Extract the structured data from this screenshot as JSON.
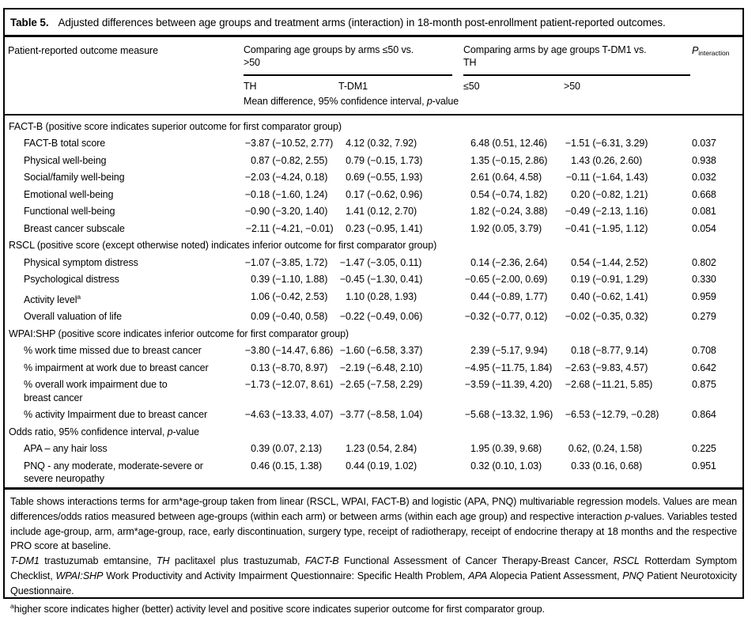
{
  "title": {
    "label": "Table 5.",
    "text": "Adjusted differences between age groups and treatment arms (interaction) in 18-month post-enrollment patient-reported outcomes."
  },
  "header": {
    "measure": "Patient-reported outcome measure",
    "group1_line1": "Comparing age groups by arms ≤50 vs.",
    "group1_line2": ">50",
    "group2_line1": "Comparing arms by age groups T-DM1 vs.",
    "group2_line2": "TH",
    "sub_th": "TH",
    "sub_tdm1": "T-DM1",
    "sub_le50": "≤50",
    "sub_gt50": ">50",
    "p_main": "P",
    "p_sub": "interaction",
    "stat_note": [
      [
        "",
        "Mean difference, 95% confidence interval, "
      ],
      [
        "i",
        "p"
      ],
      [
        "",
        "-value"
      ]
    ]
  },
  "sections": [
    {
      "header": [
        [
          "",
          "FACT-B (positive score indicates superior outcome for first comparator group)"
        ]
      ],
      "rows": [
        {
          "label": "FACT-B total score",
          "cells": [
            "−3.87 (−10.52, 2.77)",
            "4.12 (0.32, 7.92)",
            "6.48 (0.51, 12.46)",
            "−1.51 (−6.31, 3.29)"
          ],
          "p": "0.037"
        },
        {
          "label": "Physical well-being",
          "cells": [
            "0.87 (−0.82, 2.55)",
            "0.79 (−0.15, 1.73)",
            "1.35 (−0.15, 2.86)",
            "1.43 (0.26, 2.60)"
          ],
          "p": "0.938"
        },
        {
          "label": "Social/family well-being",
          "cells": [
            "−2.03 (−4.24, 0.18)",
            "0.69 (−0.55, 1.93)",
            "2.61 (0.64, 4.58)",
            "−0.11 (−1.64, 1.43)"
          ],
          "p": "0.032"
        },
        {
          "label": "Emotional well-being",
          "cells": [
            "−0.18 (−1.60, 1.24)",
            "0.17 (−0.62, 0.96)",
            "0.54 (−0.74, 1.82)",
            "0.20 (−0.82, 1.21)"
          ],
          "p": "0.668"
        },
        {
          "label": "Functional well-being",
          "cells": [
            "−0.90 (−3.20, 1.40)",
            "1.41 (0.12, 2.70)",
            "1.82 (−0.24, 3.88)",
            "−0.49 (−2.13, 1.16)"
          ],
          "p": "0.081"
        },
        {
          "label": "Breast cancer subscale",
          "cells": [
            "−2.11 (−4.21, −0.01)",
            "0.23 (−0.95, 1.41)",
            "1.92 (0.05, 3.79)",
            "−0.41 (−1.95, 1.12)"
          ],
          "p": "0.054"
        }
      ]
    },
    {
      "header": [
        [
          "",
          "RSCL (positive score (except otherwise noted) indicates inferior outcome for first comparator group)"
        ]
      ],
      "rows": [
        {
          "label": "Physical symptom distress",
          "cells": [
            "−1.07 (−3.85, 1.72)",
            "−1.47 (−3.05, 0.11)",
            "0.14 (−2.36, 2.64)",
            "0.54 (−1.44, 2.52)"
          ],
          "p": "0.802"
        },
        {
          "label": "Psychological distress",
          "cells": [
            "0.39 (−1.10, 1.88)",
            "−0.45 (−1.30, 0.41)",
            "−0.65 (−2.00, 0.69)",
            "0.19 (−0.91, 1.29)"
          ],
          "p": "0.330"
        },
        {
          "label": "Activity level",
          "label_sup": "a",
          "cells": [
            "1.06 (−0.42, 2.53)",
            "1.10 (0.28, 1.93)",
            "0.44 (−0.89, 1.77)",
            "0.40 (−0.62, 1.41)"
          ],
          "p": "0.959"
        },
        {
          "label": "Overall valuation of life",
          "cells": [
            "0.09 (−0.40, 0.58)",
            "−0.22 (−0.49, 0.06)",
            "−0.32 (−0.77, 0.12)",
            "−0.02 (−0.35, 0.32)"
          ],
          "p": "0.279"
        }
      ]
    },
    {
      "header": [
        [
          "",
          "WPAI:SHP (positive score indicates inferior outcome for first comparator group)"
        ]
      ],
      "rows": [
        {
          "label": "% work time missed due to breast cancer",
          "cells": [
            "−3.80 (−14.47, 6.86)",
            "−1.60 (−6.58, 3.37)",
            "2.39 (−5.17, 9.94)",
            "0.18 (−8.77, 9.14)"
          ],
          "p": "0.708"
        },
        {
          "label": "% impairment at work due to breast cancer",
          "cells": [
            "0.13 (−8.70, 8.97)",
            "−2.19 (−6.48, 2.10)",
            "−4.95 (−11.75, 1.84)",
            "−2.63 (−9.83, 4.57)"
          ],
          "p": "0.642"
        },
        {
          "label": "% overall work impairment due to",
          "label2": "breast cancer",
          "cells": [
            "−1.73 (−12.07, 8.61)",
            "−2.65 (−7.58, 2.29)",
            "−3.59 (−11.39, 4.20)",
            "−2.68 (−11.21, 5.85)"
          ],
          "p": "0.875"
        },
        {
          "label": "% activity Impairment due to breast cancer",
          "cells": [
            "−4.63 (−13.33, 4.07)",
            "−3.77 (−8.58, 1.04)",
            "−5.68 (−13.32, 1.96)",
            "−6.53 (−12.79, −0.28)"
          ],
          "p": "0.864"
        }
      ]
    },
    {
      "header": [
        [
          "",
          "Odds ratio, 95% confidence interval, "
        ],
        [
          "i",
          "p"
        ],
        [
          "",
          "-value"
        ]
      ],
      "rows": [
        {
          "label": "APA – any hair loss",
          "cells": [
            "0.39 (0.07, 2.13)",
            "1.23 (0.54, 2.84)",
            "1.95 (0.39, 9.68)",
            "0.62, (0.24, 1.58)"
          ],
          "p": "0.225"
        },
        {
          "label": "PNQ - any moderate, moderate-severe or",
          "label2": "severe neuropathy",
          "cells": [
            "0.46 (0.15, 1.38)",
            "0.44 (0.19, 1.02)",
            "0.32 (0.10, 1.03)",
            "0.33 (0.16, 0.68)"
          ],
          "p": "0.951"
        }
      ]
    }
  ],
  "footnotes": [
    [
      [
        "",
        "Table shows interactions terms for arm*age-group taken from linear (RSCL, WPAI, FACT-B) and logistic (APA, PNQ) multivariable regression models. Values are mean differences/odds ratios measured between age-groups (within each arm) or between arms (within each age group) and respective interaction "
      ],
      [
        "i",
        "p"
      ],
      [
        "",
        "-values. Variables tested include age-group, arm, arm*age-group, race, early discontinuation, surgery type, receipt of radiotherapy, receipt of endocrine therapy at 18 months and the respective PRO score at baseline."
      ]
    ],
    [
      [
        "i",
        "T-DM1"
      ],
      [
        "",
        " trastuzumab emtansine, "
      ],
      [
        "i",
        "TH"
      ],
      [
        "",
        " paclitaxel plus trastuzumab, "
      ],
      [
        "i",
        "FACT-B"
      ],
      [
        "",
        " Functional Assessment of Cancer Therapy-Breast Cancer, "
      ],
      [
        "i",
        "RSCL"
      ],
      [
        "",
        " Rotterdam Symptom Checklist, "
      ],
      [
        "i",
        "WPAI:SHP"
      ],
      [
        "",
        " Work Productivity and Activity Impairment Questionnaire: Specific Health Problem, "
      ],
      [
        "i",
        "APA"
      ],
      [
        "",
        " Alopecia Patient Assessment, "
      ],
      [
        "i",
        "PNQ"
      ],
      [
        "",
        " Patient Neurotoxicity Questionnaire."
      ]
    ],
    [
      [
        "sup",
        "a"
      ],
      [
        "",
        "higher score indicates higher (better) activity level and positive score indicates superior outcome for first comparator group."
      ]
    ]
  ]
}
